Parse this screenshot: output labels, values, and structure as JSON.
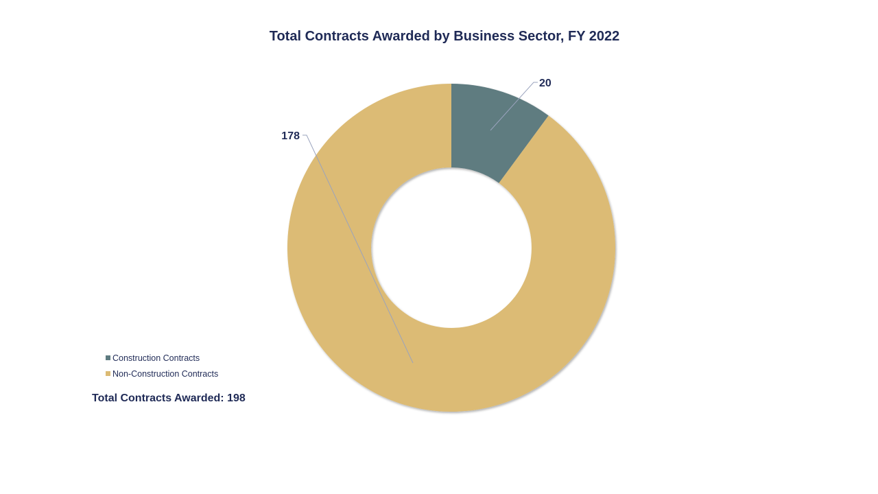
{
  "chart_data": {
    "type": "pie",
    "subtype": "donut",
    "title": "Total Contracts Awarded by Business Sector, FY 2022",
    "categories": [
      "Construction Contracts",
      "Non-Construction Contracts"
    ],
    "values": [
      20,
      178
    ],
    "colors": [
      "#5e7b80",
      "#dcbb74"
    ],
    "data_labels": [
      "20",
      "178"
    ],
    "legend_position": "left",
    "annotation": "Total Contracts Awarded: 198"
  },
  "colors": {
    "text": "#1f2a56",
    "leader_line": "#9aa3bd"
  }
}
